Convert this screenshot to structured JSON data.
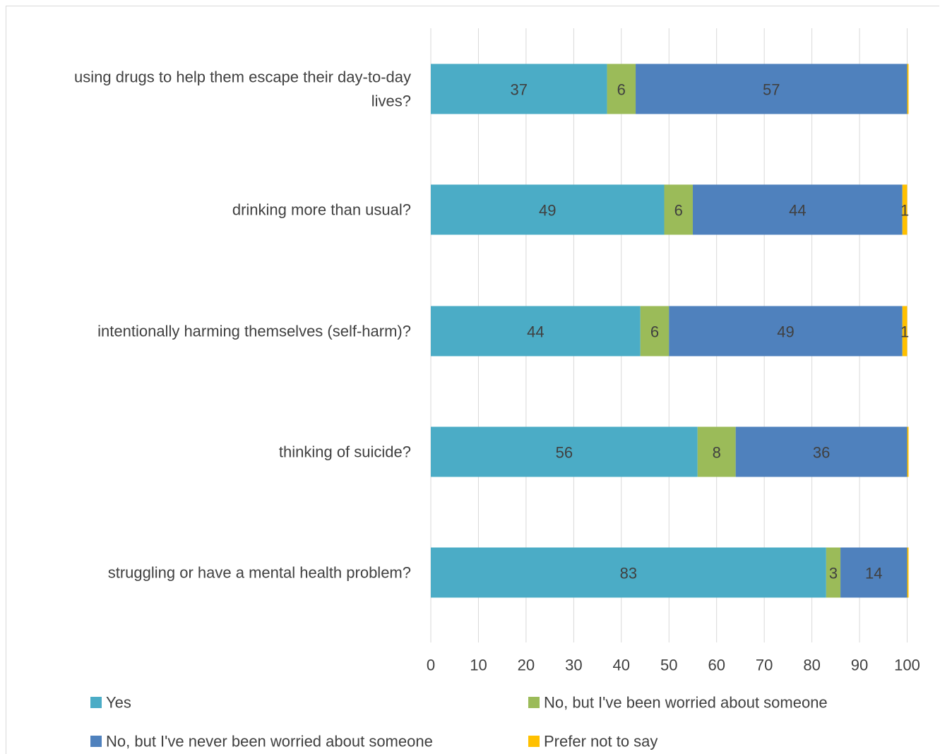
{
  "chart_data": {
    "type": "bar",
    "orientation": "horizontal",
    "stacked": true,
    "categories": [
      "using drugs to help them escape their day-to-day lives?",
      "drinking more than usual?",
      "intentionally harming themselves (self-harm)?",
      "thinking of suicide?",
      "struggling or have a mental health problem?"
    ],
    "category_lines": [
      [
        "using drugs to help them escape their day-to-day",
        "lives?"
      ],
      [
        "drinking more than usual?"
      ],
      [
        "intentionally harming themselves (self-harm)?"
      ],
      [
        "thinking of suicide?"
      ],
      [
        "struggling or have a mental health problem?"
      ]
    ],
    "series": [
      {
        "name": "Yes",
        "color": "#4bacc6",
        "values": [
          37,
          49,
          44,
          56,
          83
        ]
      },
      {
        "name": "No, but I've been worried about someone",
        "color": "#9bbb59",
        "values": [
          6,
          6,
          6,
          8,
          3
        ]
      },
      {
        "name": "No, but I've never been worried about someone",
        "color": "#4f81bd",
        "values": [
          57,
          44,
          49,
          36,
          14
        ]
      },
      {
        "name": "Prefer not to say",
        "color": "#ffc000",
        "values": [
          0,
          1,
          1,
          0,
          0
        ]
      }
    ],
    "data_labels": [
      [
        "37",
        "6",
        "57",
        ""
      ],
      [
        "49",
        "6",
        "44",
        "1"
      ],
      [
        "44",
        "6",
        "49",
        "1"
      ],
      [
        "56",
        "8",
        "36",
        ""
      ],
      [
        "83",
        "3",
        "14",
        ""
      ]
    ],
    "xlim": [
      0,
      100
    ],
    "xticks": [
      "0",
      "10",
      "20",
      "30",
      "40",
      "50",
      "60",
      "70",
      "80",
      "90",
      "100"
    ],
    "grid": true,
    "legend_position": "bottom"
  }
}
